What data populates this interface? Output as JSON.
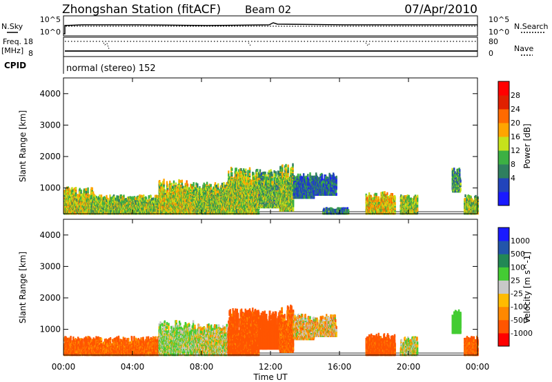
{
  "header": {
    "station": "Zhongshan Station (fitACF)",
    "beam": "Beam 02",
    "date": "07/Apr/2010"
  },
  "top_panel": {
    "left_label": "N.Sky",
    "left_ticks": [
      "10^5",
      "10^0"
    ],
    "right_label": "N.Search",
    "right_ticks": [
      "10^5",
      "10^0"
    ]
  },
  "freq_panel": {
    "left_label_1": "Freq.",
    "left_label_2": "[MHz]",
    "left_ticks": [
      "18",
      "8"
    ],
    "right_label": "Nave",
    "right_ticks": [
      "80",
      "0"
    ]
  },
  "cpid": {
    "label": "CPID",
    "mode": "normal (stereo) 152"
  },
  "colors": {
    "power_scale": [
      "#1a1aff",
      "#2244bb",
      "#2f7f5f",
      "#3cb043",
      "#c6e21b",
      "#ffa500",
      "#ff6a00",
      "#e02000",
      "#ff0000"
    ],
    "velocity_scale": [
      "#ff0000",
      "#ff5500",
      "#ff8800",
      "#ffbb00",
      "#c8c8c8",
      "#44cc33",
      "#228855",
      "#2255aa",
      "#1a1aff"
    ]
  },
  "chart_data": [
    {
      "type": "heatmap",
      "name": "power",
      "ylabel": "Slant Range [km]",
      "xlabel": "",
      "x_ticks": [
        "00:00",
        "04:00",
        "08:00",
        "12:00",
        "16:00",
        "20:00",
        "00:00"
      ],
      "x_range_hours": [
        0,
        24
      ],
      "y_ticks": [
        1000,
        2000,
        3000,
        4000
      ],
      "ylim": [
        180,
        4500
      ],
      "colorbar_label": "Power [dB]",
      "colorbar_ticks": [
        "28",
        "24",
        "20",
        "16",
        "12",
        "8",
        "4"
      ],
      "colorbar_range": [
        0,
        32
      ],
      "blobs": [
        {
          "t0": 0.0,
          "t1": 1.8,
          "r0": 200,
          "r1": 1050,
          "v": 18
        },
        {
          "t0": 1.5,
          "t1": 5.5,
          "r0": 200,
          "r1": 800,
          "v": 16
        },
        {
          "t0": 5.5,
          "t1": 7.5,
          "r0": 200,
          "r1": 1300,
          "v": 18
        },
        {
          "t0": 7.5,
          "t1": 9.5,
          "r0": 200,
          "r1": 1200,
          "v": 16
        },
        {
          "t0": 9.5,
          "t1": 11.3,
          "r0": 200,
          "r1": 1700,
          "v": 17
        },
        {
          "t0": 11.3,
          "t1": 12.5,
          "r0": 400,
          "r1": 1600,
          "v": 14
        },
        {
          "t0": 12.5,
          "t1": 13.3,
          "r0": 300,
          "r1": 1800,
          "v": 16
        },
        {
          "t0": 13.3,
          "t1": 14.5,
          "r0": 700,
          "r1": 1500,
          "v": 8
        },
        {
          "t0": 14.5,
          "t1": 15.8,
          "r0": 800,
          "r1": 1500,
          "v": 8
        },
        {
          "t0": 15.0,
          "t1": 16.5,
          "r0": 200,
          "r1": 400,
          "v": 10
        },
        {
          "t0": 17.5,
          "t1": 19.2,
          "r0": 200,
          "r1": 900,
          "v": 20
        },
        {
          "t0": 19.5,
          "t1": 20.5,
          "r0": 200,
          "r1": 800,
          "v": 17
        },
        {
          "t0": 22.5,
          "t1": 23.0,
          "r0": 900,
          "r1": 1650,
          "v": 12
        },
        {
          "t0": 23.2,
          "t1": 24.0,
          "r0": 200,
          "r1": 800,
          "v": 16
        }
      ]
    },
    {
      "type": "heatmap",
      "name": "velocity",
      "ylabel": "Slant Range [km]",
      "xlabel": "Time UT",
      "x_ticks": [
        "00:00",
        "04:00",
        "08:00",
        "12:00",
        "16:00",
        "20:00",
        "00:00"
      ],
      "x_range_hours": [
        0,
        24
      ],
      "y_ticks": [
        1000,
        2000,
        3000,
        4000
      ],
      "ylim": [
        180,
        4500
      ],
      "colorbar_label": "Velocity [m s^-1]",
      "colorbar_ticks": [
        "1000",
        "500",
        "100",
        "25",
        "-25",
        "-100",
        "-500",
        "-1000"
      ],
      "blobs": [
        {
          "t0": 0.0,
          "t1": 5.5,
          "r0": 200,
          "r1": 800,
          "v": -150
        },
        {
          "t0": 5.5,
          "t1": 7.5,
          "r0": 200,
          "r1": 1300,
          "v": 100
        },
        {
          "t0": 7.5,
          "t1": 9.5,
          "r0": 200,
          "r1": 1200,
          "v": 60
        },
        {
          "t0": 9.5,
          "t1": 11.3,
          "r0": 200,
          "r1": 1700,
          "v": -200
        },
        {
          "t0": 11.3,
          "t1": 12.5,
          "r0": 400,
          "r1": 1600,
          "v": -300
        },
        {
          "t0": 12.5,
          "t1": 13.3,
          "r0": 300,
          "r1": 1800,
          "v": -150
        },
        {
          "t0": 13.3,
          "t1": 14.5,
          "r0": 700,
          "r1": 1500,
          "v": 0
        },
        {
          "t0": 14.5,
          "t1": 15.8,
          "r0": 800,
          "r1": 1500,
          "v": 0
        },
        {
          "t0": 17.5,
          "t1": 19.2,
          "r0": 200,
          "r1": 900,
          "v": -200
        },
        {
          "t0": 19.5,
          "t1": 20.5,
          "r0": 200,
          "r1": 800,
          "v": 60
        },
        {
          "t0": 22.5,
          "t1": 23.0,
          "r0": 900,
          "r1": 1650,
          "v": 300
        },
        {
          "t0": 23.2,
          "t1": 24.0,
          "r0": 200,
          "r1": 800,
          "v": -150
        }
      ]
    }
  ]
}
